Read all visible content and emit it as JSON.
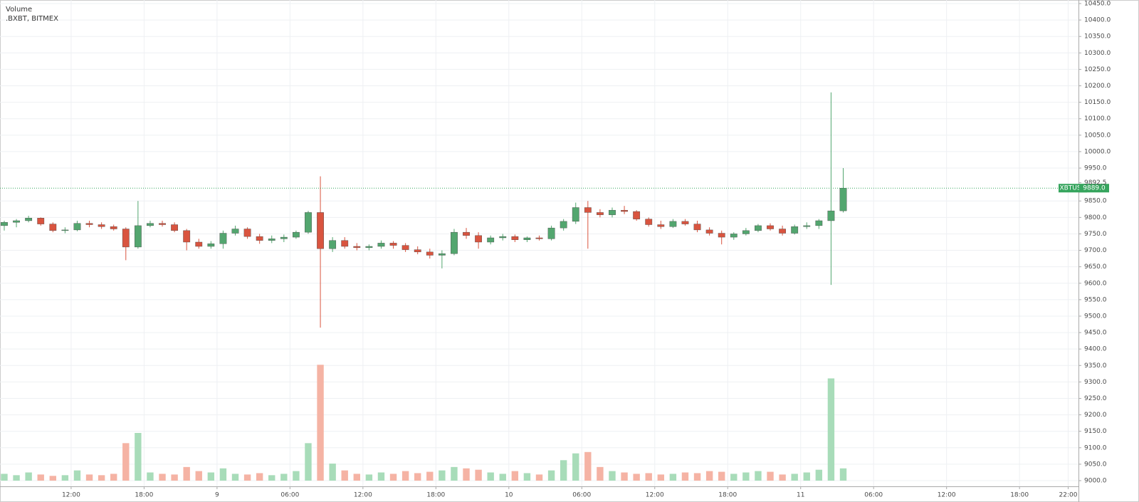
{
  "chart_data": {
    "type": "candlestick",
    "legend": [
      "Volume",
      ".BXBT, BITMEX"
    ],
    "symbol": "XBTUSD",
    "last_price": {
      "value": 9889,
      "label": "9889.0"
    },
    "axis_marker": {
      "value": 9892.5,
      "label": "9892.5"
    },
    "up_color": "#53a66f",
    "down_color": "#d9543f",
    "volume_up_color": "#a8dcb9",
    "volume_down_color": "#f5b3a4",
    "last_price_color": "#37a55e",
    "grid": true,
    "x": [
      6.5,
      7.5,
      8.5,
      9.5,
      10.5,
      11.5,
      12.5,
      13.5,
      14.5,
      15.5,
      16.5,
      17.5,
      18.5,
      19.5,
      20.5,
      21.5,
      22.5,
      23.5,
      24.5,
      25.5,
      26.5,
      27.5,
      28.5,
      29.5,
      30.5,
      31.5,
      32.5,
      33.5,
      34.5,
      35.5,
      36.5,
      37.5,
      38.5,
      39.5,
      40.5,
      41.5,
      42.5,
      43.5,
      44.5,
      45.5,
      46.5,
      47.5,
      48.5,
      49.5,
      50.5,
      51.5,
      52.5,
      53.5,
      54.5,
      55.5,
      56.5,
      57.5,
      58.5,
      59.5,
      60.5,
      61.5,
      62.5,
      63.5,
      64.5,
      65.5,
      66.5,
      67.5,
      68.5,
      69.5,
      70.5,
      71.5,
      72.5,
      73.5,
      74.5,
      75.5
    ],
    "open": [
      9775,
      9785,
      9790,
      9798,
      9780,
      9760,
      9762,
      9782,
      9778,
      9772,
      9765,
      9710,
      9775,
      9782,
      9778,
      9760,
      9725,
      9712,
      9720,
      9752,
      9765,
      9742,
      9730,
      9735,
      9740,
      9755,
      9815,
      9705,
      9730,
      9712,
      9708,
      9712,
      9722,
      9715,
      9702,
      9695,
      9685,
      9690,
      9755,
      9745,
      9725,
      9738,
      9742,
      9732,
      9738,
      9735,
      9768,
      9788,
      9830,
      9815,
      9808,
      9822,
      9818,
      9795,
      9778,
      9772,
      9788,
      9780,
      9762,
      9752,
      9740,
      9750,
      9760,
      9775,
      9765,
      9752,
      9772,
      9775,
      9790,
      9820
    ],
    "high": [
      9790,
      9795,
      9805,
      9800,
      9785,
      9770,
      9790,
      9790,
      9785,
      9778,
      9770,
      9850,
      9790,
      9790,
      9785,
      9765,
      9735,
      9728,
      9760,
      9775,
      9770,
      9750,
      9745,
      9748,
      9760,
      9820,
      9925,
      9740,
      9740,
      9722,
      9718,
      9730,
      9728,
      9722,
      9712,
      9705,
      9700,
      9765,
      9768,
      9755,
      9745,
      9750,
      9748,
      9742,
      9745,
      9775,
      9795,
      9845,
      9850,
      9825,
      9830,
      9835,
      9822,
      9800,
      9790,
      9795,
      9795,
      9790,
      9770,
      9760,
      9755,
      9768,
      9780,
      9782,
      9775,
      9778,
      9785,
      9795,
      10180,
      9950
    ],
    "low": [
      9760,
      9770,
      9785,
      9775,
      9755,
      9752,
      9758,
      9770,
      9765,
      9760,
      9670,
      9705,
      9770,
      9772,
      9755,
      9700,
      9705,
      9705,
      9705,
      9745,
      9735,
      9720,
      9722,
      9725,
      9735,
      9750,
      9465,
      9695,
      9705,
      9700,
      9700,
      9705,
      9705,
      9695,
      9688,
      9675,
      9645,
      9685,
      9735,
      9705,
      9718,
      9730,
      9725,
      9725,
      9730,
      9730,
      9760,
      9780,
      9705,
      9800,
      9800,
      9810,
      9790,
      9772,
      9765,
      9768,
      9775,
      9755,
      9745,
      9718,
      9732,
      9745,
      9755,
      9760,
      9745,
      9748,
      9765,
      9765,
      9595,
      9815
    ],
    "close": [
      9785,
      9790,
      9798,
      9780,
      9760,
      9762,
      9782,
      9778,
      9772,
      9765,
      9710,
      9775,
      9782,
      9778,
      9760,
      9725,
      9712,
      9720,
      9752,
      9765,
      9742,
      9730,
      9735,
      9740,
      9755,
      9815,
      9705,
      9730,
      9712,
      9708,
      9712,
      9722,
      9715,
      9702,
      9695,
      9685,
      9690,
      9755,
      9745,
      9725,
      9738,
      9742,
      9732,
      9738,
      9735,
      9768,
      9788,
      9830,
      9815,
      9808,
      9822,
      9818,
      9795,
      9778,
      9772,
      9788,
      9780,
      9762,
      9752,
      9740,
      9750,
      9760,
      9775,
      9765,
      9752,
      9772,
      9775,
      9790,
      9820,
      9889
    ],
    "volume": [
      10,
      8,
      12,
      9,
      7,
      8,
      15,
      9,
      8,
      10,
      55,
      70,
      12,
      10,
      9,
      20,
      14,
      12,
      18,
      10,
      9,
      11,
      8,
      10,
      14,
      55,
      170,
      25,
      15,
      10,
      9,
      12,
      10,
      14,
      11,
      13,
      15,
      20,
      18,
      16,
      12,
      10,
      14,
      11,
      9,
      15,
      30,
      40,
      42,
      20,
      14,
      12,
      10,
      11,
      9,
      10,
      12,
      11,
      14,
      13,
      10,
      12,
      14,
      13,
      9,
      10,
      12,
      16,
      150,
      18
    ],
    "volume_lim": [
      0,
      700
    ],
    "xlim": [
      6.15,
      94.85
    ],
    "xticks": [
      {
        "value": 12,
        "label": "12:00"
      },
      {
        "value": 18,
        "label": "18:00"
      },
      {
        "value": 24,
        "label": "9"
      },
      {
        "value": 30,
        "label": "06:00"
      },
      {
        "value": 36,
        "label": "12:00"
      },
      {
        "value": 42,
        "label": "18:00"
      },
      {
        "value": 48,
        "label": "10"
      },
      {
        "value": 54,
        "label": "06:00"
      },
      {
        "value": 60,
        "label": "12:00"
      },
      {
        "value": 66,
        "label": "18:00"
      },
      {
        "value": 72,
        "label": "11"
      },
      {
        "value": 78,
        "label": "06:00"
      },
      {
        "value": 84,
        "label": "12:00"
      },
      {
        "value": 90,
        "label": "18:00"
      },
      {
        "value": 94,
        "label": "22:00"
      }
    ],
    "ylim": [
      9000,
      10450
    ],
    "yticks": [
      {
        "value": 10450,
        "label": "10450.0"
      },
      {
        "value": 10400,
        "label": "10400.0"
      },
      {
        "value": 10350,
        "label": "10350.0"
      },
      {
        "value": 10300,
        "label": "10300.0"
      },
      {
        "value": 10250,
        "label": "10250.0"
      },
      {
        "value": 10200,
        "label": "10200.0"
      },
      {
        "value": 10150,
        "label": "10150.0"
      },
      {
        "value": 10100,
        "label": "10100.0"
      },
      {
        "value": 10050,
        "label": "10050.0"
      },
      {
        "value": 10000,
        "label": "10000.0"
      },
      {
        "value": 9950,
        "label": "9950.0"
      },
      {
        "value": 9850,
        "label": "9850.0"
      },
      {
        "value": 9800,
        "label": "9800.0"
      },
      {
        "value": 9750,
        "label": "9750.0"
      },
      {
        "value": 9700,
        "label": "9700.0"
      },
      {
        "value": 9650,
        "label": "9650.0"
      },
      {
        "value": 9600,
        "label": "9600.0"
      },
      {
        "value": 9550,
        "label": "9550.0"
      },
      {
        "value": 9500,
        "label": "9500.0"
      },
      {
        "value": 9450,
        "label": "9450.0"
      },
      {
        "value": 9400,
        "label": "9400.0"
      },
      {
        "value": 9350,
        "label": "9350.0"
      },
      {
        "value": 9300,
        "label": "9300.0"
      },
      {
        "value": 9250,
        "label": "9250.0"
      },
      {
        "value": 9200,
        "label": "9200.0"
      },
      {
        "value": 9150,
        "label": "9150.0"
      },
      {
        "value": 9100,
        "label": "9100.0"
      },
      {
        "value": 9050,
        "label": "9050.0"
      },
      {
        "value": 9000,
        "label": "9000.0"
      }
    ]
  }
}
